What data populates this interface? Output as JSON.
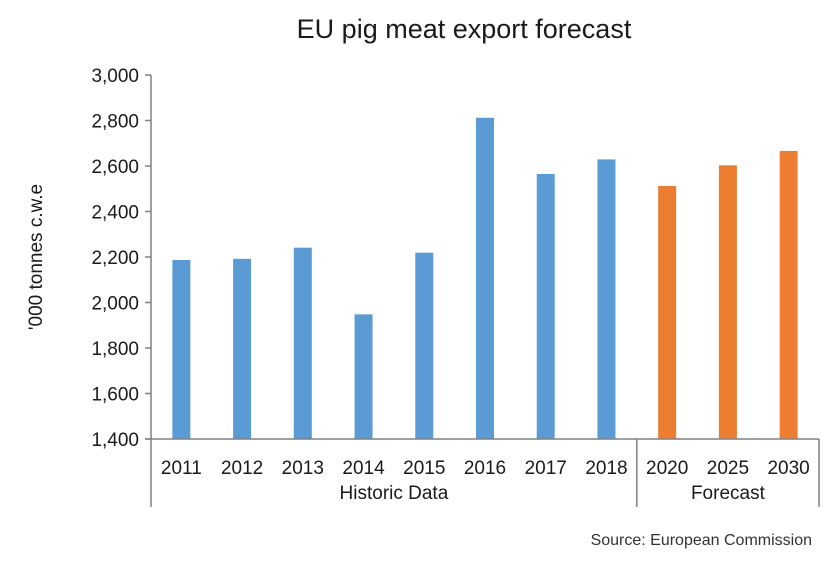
{
  "chart_data": {
    "type": "bar",
    "title": "EU pig meat export forecast",
    "xlabel": "",
    "ylabel": "'000 tonnes c.w.e",
    "ylim": [
      1400,
      3000
    ],
    "yticks": [
      1400,
      1600,
      1800,
      2000,
      2200,
      2400,
      2600,
      2800,
      3000
    ],
    "ytick_labels": [
      "1,400",
      "1,600",
      "1,800",
      "2,000",
      "2,200",
      "2,400",
      "2,600",
      "2,800",
      "3,000"
    ],
    "grid": false,
    "categories": [
      "2011",
      "2012",
      "2013",
      "2014",
      "2015",
      "2016",
      "2017",
      "2018",
      "2020",
      "2025",
      "2030"
    ],
    "values": [
      2187,
      2192,
      2241,
      1948,
      2219,
      2812,
      2565,
      2629,
      2512,
      2603,
      2666
    ],
    "groups": [
      {
        "name": "Historic Data",
        "categories": [
          "2011",
          "2012",
          "2013",
          "2014",
          "2015",
          "2016",
          "2017",
          "2018"
        ],
        "color": "#5b9bd5"
      },
      {
        "name": "Forecast",
        "categories": [
          "2020",
          "2025",
          "2030"
        ],
        "color": "#ed7d31"
      }
    ],
    "source": "Source: European Commission"
  }
}
